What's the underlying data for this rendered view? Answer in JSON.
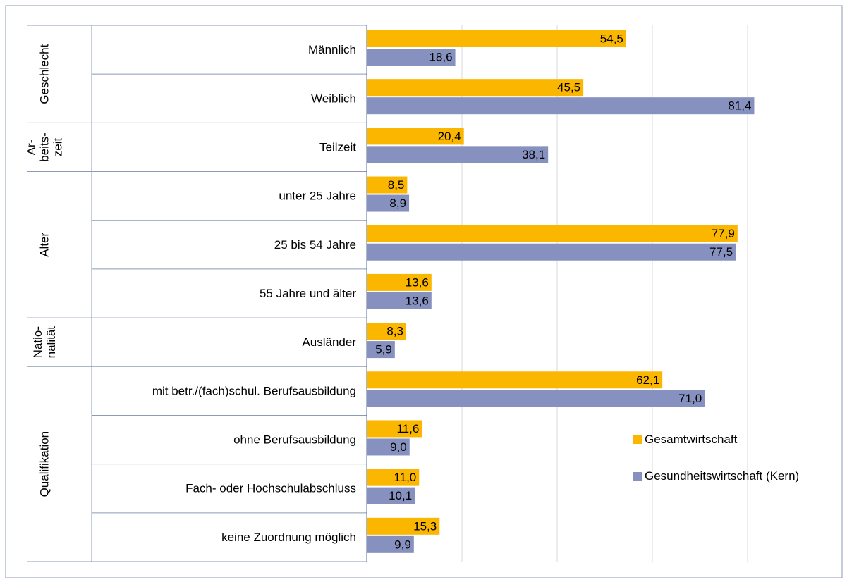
{
  "chart_data": {
    "type": "barh",
    "groups": [
      {
        "label": [
          "Geschlecht"
        ],
        "categories": [
          "Männlich",
          "Weiblich"
        ]
      },
      {
        "label": [
          "Ar-",
          "beits-",
          "zeit"
        ],
        "categories": [
          "Teilzeit"
        ]
      },
      {
        "label": [
          "Alter"
        ],
        "categories": [
          "unter 25 Jahre",
          "25 bis 54 Jahre",
          "55 Jahre und älter"
        ]
      },
      {
        "label": [
          "Natio-",
          "nalität"
        ],
        "categories": [
          "Ausländer"
        ]
      },
      {
        "label": [
          "Qualifikation"
        ],
        "categories": [
          "mit betr./(fach)schul. Berufsausbildung",
          "ohne Berufsausbildung",
          "Fach- oder Hochschulabschluss",
          "keine Zuordnung möglich"
        ]
      }
    ],
    "series": [
      {
        "name": "Gesamtwirtschaft",
        "color": "#FBB600",
        "values": [
          54.5,
          45.5,
          20.4,
          8.5,
          77.9,
          13.6,
          8.3,
          62.1,
          11.6,
          11.0,
          15.3
        ],
        "value_labels": [
          "54,5",
          "45,5",
          "20,4",
          "8,5",
          "77,9",
          "13,6",
          "8,3",
          "62,1",
          "11,6",
          "11,0",
          "15,3"
        ]
      },
      {
        "name": "Gesundheitswirtschaft (Kern)",
        "color": "#8691BF",
        "values": [
          18.6,
          81.4,
          38.1,
          8.9,
          77.5,
          13.6,
          5.9,
          71.0,
          9.0,
          10.1,
          9.9
        ],
        "value_labels": [
          "18,6",
          "81,4",
          "38,1",
          "8,9",
          "77,5",
          "13,6",
          "5,9",
          "71,0",
          "9,0",
          "10,1",
          "9,9"
        ]
      }
    ],
    "xlim": [
      0,
      100
    ],
    "xticks": [
      0,
      20,
      40,
      60,
      80,
      100
    ],
    "grid": true,
    "legend": "right"
  }
}
